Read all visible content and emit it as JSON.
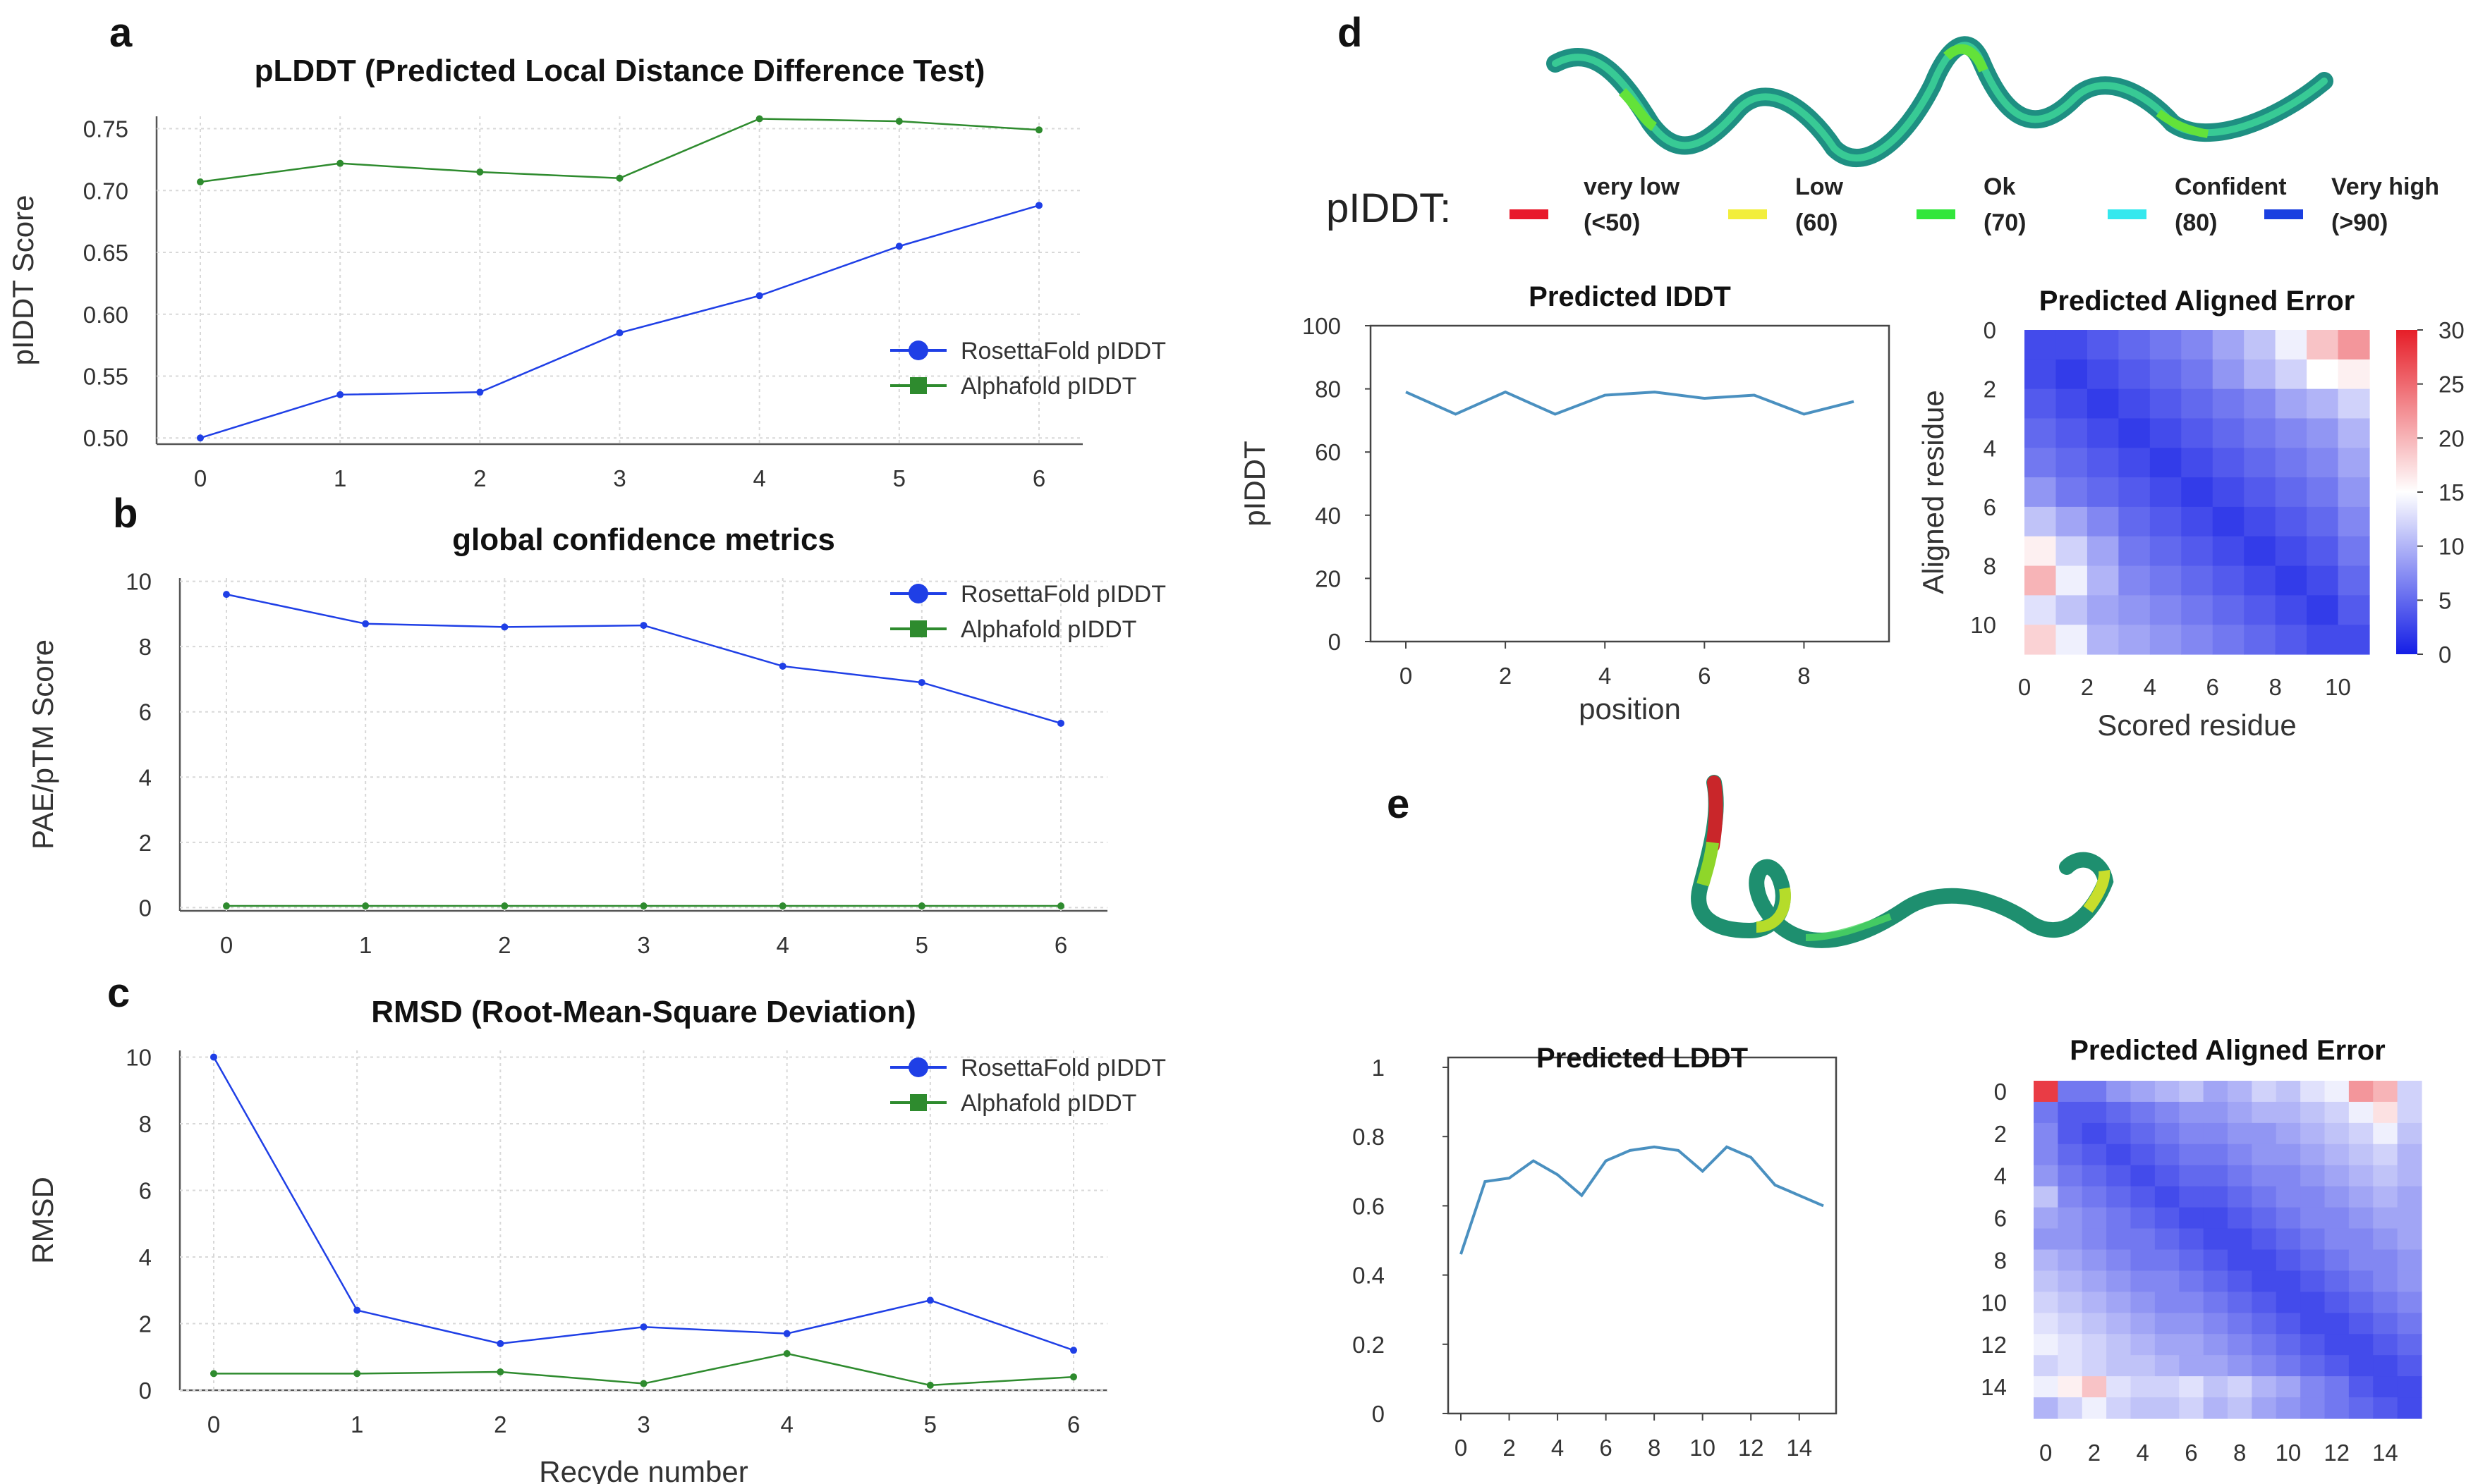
{
  "panel_labels": {
    "a": "a",
    "b": "b",
    "c": "c",
    "d": "d",
    "e": "e"
  },
  "chart_data": [
    {
      "id": "a",
      "type": "line",
      "title": "pLDDT (Predicted Local Distance Difference Test)",
      "xlabel": "",
      "ylabel": "pIDDT Score",
      "x": [
        0,
        1,
        2,
        3,
        4,
        5,
        6
      ],
      "yticks": [
        "0.50",
        "0.55",
        "0.60",
        "0.65",
        "0.70",
        "0.75"
      ],
      "ylim": [
        0.495,
        0.76
      ],
      "series": [
        {
          "name": "RosettaFold pIDDT",
          "color": "#1f3fe6",
          "values": [
            0.5,
            0.535,
            0.537,
            0.585,
            0.615,
            0.655,
            0.688
          ]
        },
        {
          "name": "Alphafold pIDDT",
          "color": "#2e8b2e",
          "values": [
            0.707,
            0.722,
            0.715,
            0.71,
            0.758,
            0.756,
            0.749
          ]
        }
      ]
    },
    {
      "id": "b",
      "type": "line",
      "title": "global confidence metrics",
      "xlabel": "",
      "ylabel": "PAE/pTM Score",
      "x": [
        0,
        1,
        2,
        3,
        4,
        5,
        6
      ],
      "yticks": [
        "0",
        "2",
        "4",
        "6",
        "8",
        "10"
      ],
      "ylim": [
        -0.1,
        10.1
      ],
      "series": [
        {
          "name": "RosettaFold pIDDT",
          "color": "#1f3fe6",
          "values": [
            9.6,
            8.7,
            8.6,
            8.65,
            7.4,
            6.9,
            5.65
          ]
        },
        {
          "name": "Alphafold pIDDT",
          "color": "#2e8b2e",
          "values": [
            0.05,
            0.05,
            0.05,
            0.05,
            0.05,
            0.05,
            0.05
          ]
        }
      ]
    },
    {
      "id": "c",
      "type": "line",
      "title": "RMSD (Root-Mean-Square Deviation)",
      "xlabel": "Recyde number",
      "ylabel": "RMSD",
      "x": [
        0,
        1,
        2,
        3,
        4,
        5,
        6
      ],
      "yticks": [
        "0",
        "2",
        "4",
        "6",
        "8",
        "10"
      ],
      "ylim": [
        0,
        10.2
      ],
      "series": [
        {
          "name": "RosettaFold pIDDT",
          "color": "#1f3fe6",
          "values": [
            10.0,
            2.4,
            1.4,
            1.9,
            1.7,
            2.7,
            1.2
          ]
        },
        {
          "name": "Alphafold pIDDT",
          "color": "#2e8b2e",
          "values": [
            0.5,
            0.5,
            0.55,
            0.2,
            1.1,
            0.15,
            0.4
          ]
        }
      ]
    },
    {
      "id": "d-lddt",
      "type": "line",
      "title": "Predicted IDDT",
      "xlabel": "position",
      "ylabel": "pIDDT",
      "x": [
        0,
        1,
        2,
        3,
        4,
        5,
        6,
        7,
        8,
        9
      ],
      "xticks": [
        "0",
        "2",
        "4",
        "6",
        "8"
      ],
      "yticks": [
        "0",
        "20",
        "40",
        "60",
        "80",
        "100"
      ],
      "ylim": [
        0,
        100
      ],
      "series": [
        {
          "name": "pIDDT",
          "color": "#4a90c0",
          "values": [
            79,
            72,
            79,
            72,
            78,
            79,
            77,
            78,
            72,
            76
          ]
        }
      ]
    },
    {
      "id": "d-pae",
      "type": "heatmap",
      "title": "Predicted Aligned Error",
      "xlabel": "Scored residue",
      "ylabel": "Aligned residue",
      "xticks": [
        "0",
        "2",
        "4",
        "6",
        "8",
        "10"
      ],
      "yticks": [
        "0",
        "2",
        "4",
        "6",
        "8",
        "10"
      ],
      "colorbar": {
        "min": 0,
        "max": 30,
        "ticks": [
          "0",
          "5",
          "10",
          "15",
          "20",
          "25",
          "30"
        ]
      },
      "matrix": [
        [
          3,
          3,
          4,
          5,
          6,
          7,
          9,
          11,
          14,
          19,
          22
        ],
        [
          3,
          2,
          3,
          4,
          5,
          6,
          8,
          10,
          12,
          15,
          16
        ],
        [
          4,
          3,
          2,
          3,
          4,
          5,
          6,
          7,
          9,
          10,
          12
        ],
        [
          5,
          4,
          3,
          2,
          3,
          4,
          5,
          6,
          7,
          8,
          10
        ],
        [
          6,
          5,
          4,
          3,
          2,
          3,
          4,
          5,
          6,
          7,
          9
        ],
        [
          8,
          6,
          5,
          4,
          3,
          2,
          3,
          4,
          5,
          6,
          8
        ],
        [
          11,
          9,
          7,
          5,
          4,
          3,
          2,
          3,
          4,
          5,
          7
        ],
        [
          16,
          12,
          9,
          6,
          5,
          4,
          3,
          2,
          3,
          4,
          6
        ],
        [
          20,
          14,
          10,
          7,
          6,
          5,
          4,
          3,
          2,
          3,
          5
        ],
        [
          13,
          11,
          9,
          8,
          7,
          6,
          5,
          4,
          3,
          2,
          4
        ],
        [
          18,
          14,
          10,
          9,
          8,
          7,
          6,
          5,
          4,
          3,
          3
        ]
      ]
    },
    {
      "id": "e-lddt",
      "type": "line",
      "title": "Predicted LDDT",
      "xlabel": "",
      "ylabel": "",
      "x": [
        0,
        1,
        2,
        3,
        4,
        5,
        6,
        7,
        8,
        9,
        10,
        11,
        12,
        13,
        14,
        15
      ],
      "xticks": [
        "0",
        "2",
        "4",
        "6",
        "8",
        "10",
        "12",
        "14"
      ],
      "yticks": [
        "0",
        "0.2",
        "0.4",
        "0.6",
        "0.8",
        "1"
      ],
      "ylim": [
        0,
        1
      ],
      "series": [
        {
          "name": "LDDT",
          "color": "#4a90c0",
          "values": [
            0.46,
            0.67,
            0.68,
            0.73,
            0.69,
            0.63,
            0.73,
            0.76,
            0.77,
            0.76,
            0.7,
            0.77,
            0.74,
            0.66,
            0.63,
            0.6
          ]
        }
      ]
    },
    {
      "id": "e-pae",
      "type": "heatmap",
      "title": "Predicted Aligned Error",
      "xlabel": "",
      "ylabel": "",
      "xticks": [
        "0",
        "2",
        "4",
        "6",
        "8",
        "10",
        "12",
        "14"
      ],
      "yticks": [
        "0",
        "2",
        "4",
        "6",
        "8",
        "10",
        "12",
        "14"
      ],
      "colorbar": {
        "min": 0,
        "max": 30
      },
      "matrix": [
        [
          28,
          6,
          6,
          8,
          9,
          10,
          11,
          9,
          10,
          12,
          11,
          13,
          14,
          22,
          20,
          12
        ],
        [
          6,
          4,
          4,
          5,
          6,
          7,
          8,
          8,
          9,
          10,
          10,
          11,
          12,
          14,
          17,
          12
        ],
        [
          7,
          4,
          3,
          4,
          5,
          6,
          7,
          7,
          8,
          8,
          9,
          10,
          11,
          12,
          14,
          11
        ],
        [
          7,
          5,
          4,
          3,
          4,
          5,
          6,
          6,
          7,
          8,
          8,
          9,
          10,
          11,
          12,
          10
        ],
        [
          8,
          6,
          5,
          4,
          3,
          4,
          5,
          5,
          6,
          7,
          7,
          8,
          9,
          10,
          11,
          10
        ],
        [
          11,
          7,
          6,
          5,
          4,
          3,
          4,
          4,
          5,
          6,
          7,
          7,
          8,
          9,
          10,
          9
        ],
        [
          9,
          8,
          7,
          6,
          5,
          4,
          3,
          3,
          4,
          5,
          6,
          7,
          7,
          8,
          9,
          9
        ],
        [
          8,
          8,
          7,
          6,
          6,
          5,
          4,
          3,
          3,
          4,
          5,
          6,
          7,
          7,
          8,
          9
        ],
        [
          10,
          9,
          8,
          7,
          6,
          6,
          5,
          4,
          3,
          3,
          4,
          5,
          6,
          7,
          7,
          8
        ],
        [
          11,
          10,
          9,
          8,
          7,
          7,
          6,
          5,
          4,
          3,
          3,
          4,
          5,
          6,
          7,
          8
        ],
        [
          12,
          11,
          10,
          9,
          8,
          7,
          7,
          6,
          5,
          4,
          3,
          3,
          4,
          5,
          6,
          7
        ],
        [
          13,
          12,
          11,
          10,
          9,
          8,
          8,
          7,
          6,
          5,
          4,
          3,
          3,
          4,
          5,
          6
        ],
        [
          14,
          13,
          12,
          11,
          10,
          9,
          9,
          8,
          7,
          6,
          5,
          4,
          3,
          3,
          4,
          5
        ],
        [
          12,
          13,
          12,
          11,
          11,
          10,
          9,
          9,
          8,
          7,
          6,
          5,
          4,
          3,
          3,
          4
        ],
        [
          14,
          16,
          19,
          13,
          12,
          12,
          13,
          11,
          12,
          10,
          9,
          7,
          6,
          4,
          3,
          3
        ],
        [
          10,
          12,
          14,
          12,
          11,
          11,
          12,
          10,
          11,
          9,
          8,
          7,
          6,
          5,
          4,
          3
        ]
      ]
    }
  ],
  "legend_d": {
    "label": "pIDDT:",
    "items": [
      {
        "line1": "very low",
        "line2": "(<50)",
        "color": "#e8192b"
      },
      {
        "line1": "Low",
        "line2": "(60)",
        "color": "#f2ee3c"
      },
      {
        "line1": "Ok",
        "line2": "(70)",
        "color": "#32e63c"
      },
      {
        "line1": "Confident",
        "line2": "(80)",
        "color": "#35e8ee"
      },
      {
        "line1": "Very high",
        "line2": "(>90)",
        "color": "#1a3fe0"
      }
    ]
  }
}
